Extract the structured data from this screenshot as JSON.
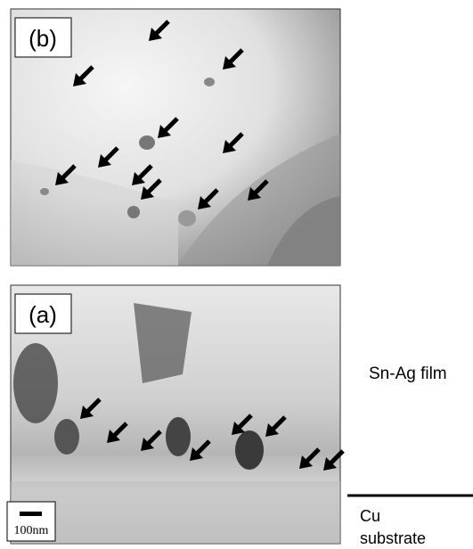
{
  "panels": [
    {
      "label": "(b)"
    },
    {
      "label": "(a)"
    }
  ],
  "annotations": {
    "film": "Sn-Ag film",
    "substrate": [
      "Cu",
      "substrate"
    ]
  },
  "scale_bar": "100nm"
}
